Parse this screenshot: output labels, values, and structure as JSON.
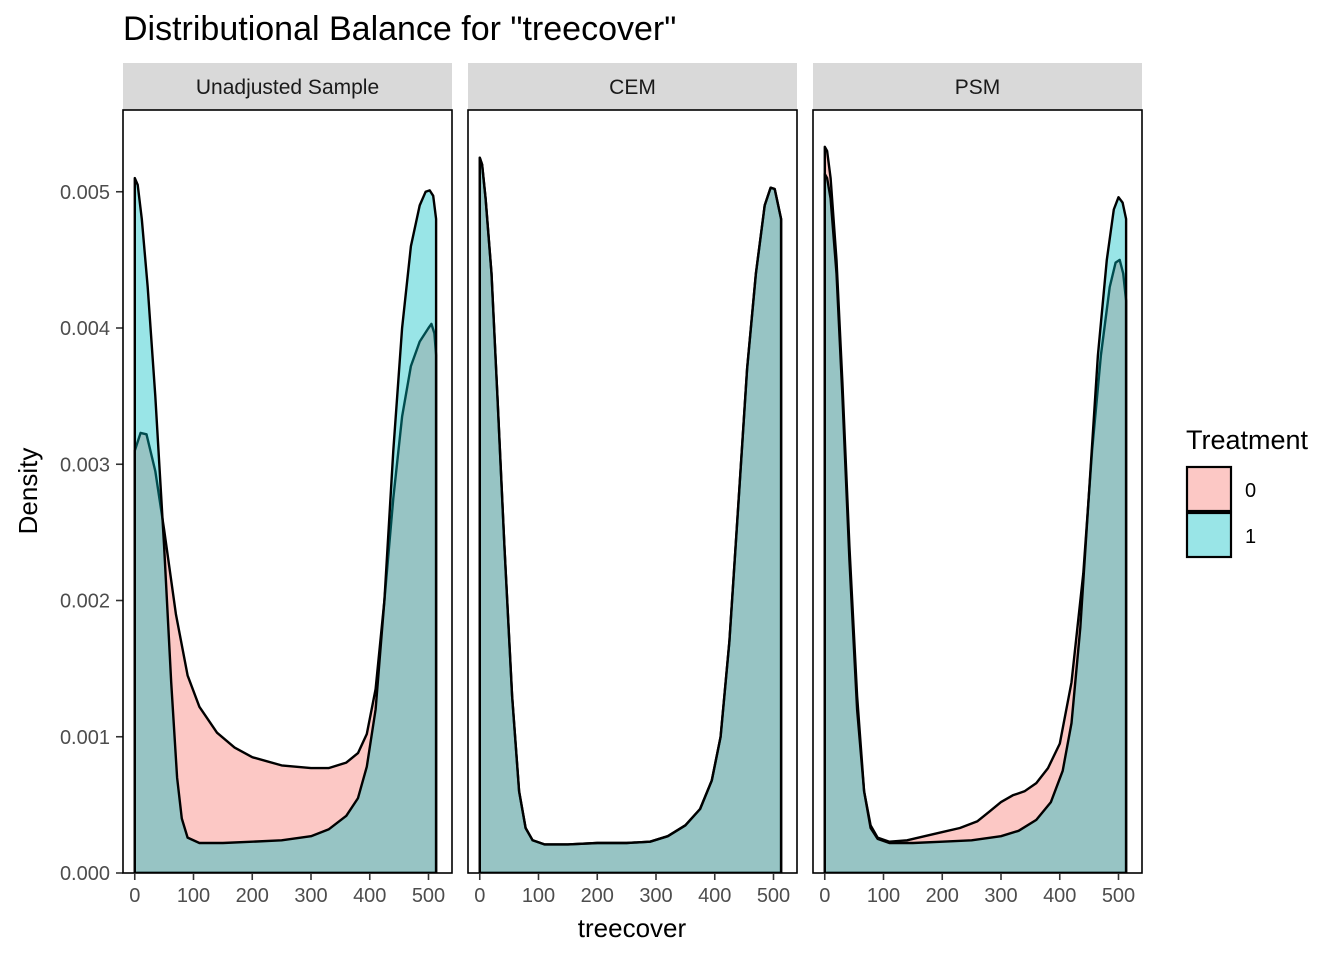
{
  "chart_data": {
    "type": "area",
    "title": "Distributional Balance for \"treecover\"",
    "xlabel": "treecover",
    "ylabel": "Density",
    "xlim": [
      -20,
      540
    ],
    "ylim": [
      0,
      0.0056
    ],
    "x_ticks": [
      0,
      100,
      200,
      300,
      400,
      500
    ],
    "x_tick_labels": [
      "0",
      "100",
      "200",
      "300",
      "400",
      "500"
    ],
    "y_ticks": [
      0,
      0.001,
      0.002,
      0.003,
      0.004,
      0.005
    ],
    "y_tick_labels": [
      "0.000",
      "0.001",
      "0.002",
      "0.003",
      "0.004",
      "0.005"
    ],
    "grid": false,
    "legend": {
      "title": "Treatment",
      "position": "right",
      "entries": [
        {
          "label": "0",
          "color": "#F8766D"
        },
        {
          "label": "1",
          "color": "#00BFC4"
        }
      ]
    },
    "panels": [
      {
        "name": "Unadjusted Sample",
        "series": [
          {
            "name": "0",
            "color": "#F8766D",
            "points": [
              [
                0,
                0.0031
              ],
              [
                10,
                0.00323
              ],
              [
                20,
                0.00322
              ],
              [
                35,
                0.00295
              ],
              [
                50,
                0.00252
              ],
              [
                70,
                0.0019
              ],
              [
                90,
                0.00145
              ],
              [
                110,
                0.00122
              ],
              [
                140,
                0.00103
              ],
              [
                170,
                0.00092
              ],
              [
                200,
                0.00085
              ],
              [
                250,
                0.00079
              ],
              [
                300,
                0.00077
              ],
              [
                330,
                0.00077
              ],
              [
                360,
                0.00081
              ],
              [
                380,
                0.00088
              ],
              [
                395,
                0.00102
              ],
              [
                410,
                0.00135
              ],
              [
                425,
                0.002
              ],
              [
                440,
                0.00275
              ],
              [
                455,
                0.00335
              ],
              [
                470,
                0.00372
              ],
              [
                485,
                0.0039
              ],
              [
                500,
                0.004
              ],
              [
                505,
                0.00403
              ],
              [
                510,
                0.00396
              ],
              [
                513,
                0.0038
              ]
            ]
          },
          {
            "name": "1",
            "color": "#00BFC4",
            "points": [
              [
                0,
                0.0051
              ],
              [
                5,
                0.00505
              ],
              [
                12,
                0.0048
              ],
              [
                22,
                0.0043
              ],
              [
                35,
                0.0035
              ],
              [
                50,
                0.0024
              ],
              [
                62,
                0.0014
              ],
              [
                72,
                0.0007
              ],
              [
                80,
                0.0004
              ],
              [
                90,
                0.00026
              ],
              [
                110,
                0.00022
              ],
              [
                150,
                0.00022
              ],
              [
                200,
                0.00023
              ],
              [
                250,
                0.00024
              ],
              [
                300,
                0.00027
              ],
              [
                330,
                0.00032
              ],
              [
                360,
                0.00042
              ],
              [
                380,
                0.00055
              ],
              [
                395,
                0.00078
              ],
              [
                410,
                0.0012
              ],
              [
                425,
                0.002
              ],
              [
                440,
                0.0031
              ],
              [
                455,
                0.004
              ],
              [
                470,
                0.0046
              ],
              [
                485,
                0.0049
              ],
              [
                495,
                0.005
              ],
              [
                502,
                0.00501
              ],
              [
                508,
                0.00497
              ],
              [
                513,
                0.0048
              ]
            ]
          }
        ]
      },
      {
        "name": "CEM",
        "series": [
          {
            "name": "0",
            "color": "#F8766D",
            "points": [
              [
                0,
                0.00525
              ],
              [
                4,
                0.0052
              ],
              [
                10,
                0.00495
              ],
              [
                20,
                0.0044
              ],
              [
                30,
                0.0035
              ],
              [
                42,
                0.0024
              ],
              [
                55,
                0.0013
              ],
              [
                67,
                0.0006
              ],
              [
                78,
                0.00033
              ],
              [
                90,
                0.00024
              ],
              [
                110,
                0.00021
              ],
              [
                150,
                0.00021
              ],
              [
                200,
                0.00022
              ],
              [
                250,
                0.00022
              ],
              [
                290,
                0.00023
              ],
              [
                320,
                0.00027
              ],
              [
                350,
                0.00035
              ],
              [
                375,
                0.00047
              ],
              [
                395,
                0.00068
              ],
              [
                410,
                0.001
              ],
              [
                425,
                0.0017
              ],
              [
                440,
                0.0027
              ],
              [
                455,
                0.0037
              ],
              [
                470,
                0.0044
              ],
              [
                485,
                0.0049
              ],
              [
                495,
                0.00503
              ],
              [
                502,
                0.00502
              ],
              [
                508,
                0.0049
              ],
              [
                513,
                0.0048
              ]
            ]
          },
          {
            "name": "1",
            "color": "#00BFC4",
            "points": [
              [
                0,
                0.00525
              ],
              [
                4,
                0.0052
              ],
              [
                10,
                0.00495
              ],
              [
                20,
                0.0044
              ],
              [
                30,
                0.0035
              ],
              [
                42,
                0.0024
              ],
              [
                55,
                0.0013
              ],
              [
                67,
                0.0006
              ],
              [
                78,
                0.00033
              ],
              [
                90,
                0.00024
              ],
              [
                110,
                0.00021
              ],
              [
                150,
                0.00021
              ],
              [
                200,
                0.00022
              ],
              [
                250,
                0.00022
              ],
              [
                290,
                0.00023
              ],
              [
                320,
                0.00027
              ],
              [
                350,
                0.00035
              ],
              [
                375,
                0.00047
              ],
              [
                395,
                0.00068
              ],
              [
                410,
                0.001
              ],
              [
                425,
                0.0017
              ],
              [
                440,
                0.0027
              ],
              [
                455,
                0.0037
              ],
              [
                470,
                0.0044
              ],
              [
                485,
                0.0049
              ],
              [
                495,
                0.00503
              ],
              [
                502,
                0.00502
              ],
              [
                508,
                0.0049
              ],
              [
                513,
                0.0048
              ]
            ]
          }
        ]
      },
      {
        "name": "PSM",
        "series": [
          {
            "name": "0",
            "color": "#F8766D",
            "points": [
              [
                0,
                0.00533
              ],
              [
                4,
                0.0053
              ],
              [
                10,
                0.0051
              ],
              [
                20,
                0.0045
              ],
              [
                30,
                0.0036
              ],
              [
                42,
                0.0024
              ],
              [
                55,
                0.0013
              ],
              [
                67,
                0.0006
              ],
              [
                78,
                0.00035
              ],
              [
                90,
                0.00026
              ],
              [
                110,
                0.00023
              ],
              [
                140,
                0.00024
              ],
              [
                170,
                0.00027
              ],
              [
                200,
                0.0003
              ],
              [
                230,
                0.00033
              ],
              [
                260,
                0.00038
              ],
              [
                280,
                0.00045
              ],
              [
                300,
                0.00052
              ],
              [
                320,
                0.00057
              ],
              [
                340,
                0.0006
              ],
              [
                360,
                0.00066
              ],
              [
                380,
                0.00077
              ],
              [
                400,
                0.00095
              ],
              [
                420,
                0.0014
              ],
              [
                440,
                0.0022
              ],
              [
                455,
                0.0031
              ],
              [
                470,
                0.0038
              ],
              [
                485,
                0.0043
              ],
              [
                495,
                0.00448
              ],
              [
                502,
                0.0045
              ],
              [
                508,
                0.0044
              ],
              [
                513,
                0.0042
              ]
            ]
          },
          {
            "name": "1",
            "color": "#00BFC4",
            "points": [
              [
                0,
                0.00513
              ],
              [
                4,
                0.0051
              ],
              [
                10,
                0.00495
              ],
              [
                20,
                0.0044
              ],
              [
                30,
                0.0035
              ],
              [
                42,
                0.0023
              ],
              [
                55,
                0.0012
              ],
              [
                67,
                0.0006
              ],
              [
                78,
                0.00033
              ],
              [
                90,
                0.00025
              ],
              [
                110,
                0.00022
              ],
              [
                150,
                0.00022
              ],
              [
                200,
                0.00023
              ],
              [
                250,
                0.00024
              ],
              [
                300,
                0.00027
              ],
              [
                330,
                0.00031
              ],
              [
                360,
                0.00039
              ],
              [
                385,
                0.00052
              ],
              [
                405,
                0.00075
              ],
              [
                420,
                0.0011
              ],
              [
                435,
                0.0018
              ],
              [
                450,
                0.0028
              ],
              [
                465,
                0.0038
              ],
              [
                480,
                0.0045
              ],
              [
                492,
                0.00487
              ],
              [
                500,
                0.00496
              ],
              [
                507,
                0.00492
              ],
              [
                513,
                0.0048
              ]
            ]
          }
        ]
      }
    ]
  }
}
